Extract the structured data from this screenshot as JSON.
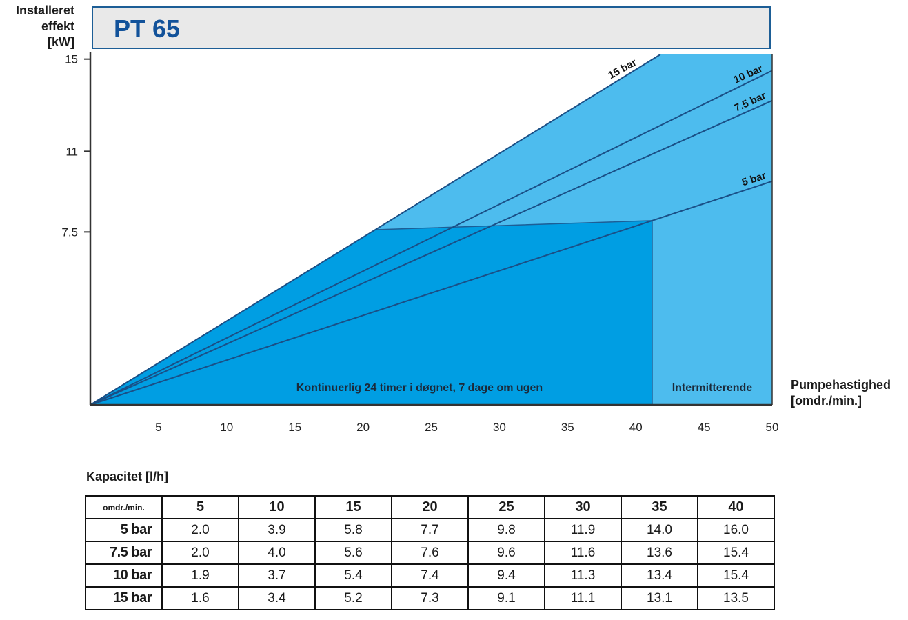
{
  "title": "PT 65",
  "colors": {
    "continuous": "#009ee3",
    "intermittent": "#4dbcee",
    "border": "#1d5e96",
    "title": "#12529a"
  },
  "chart_data": {
    "type": "line",
    "ylabel_lines": [
      "Installeret",
      "effekt",
      "[kW]"
    ],
    "xlabel_lines": [
      "Pumpehastighed",
      "[omdr./min.]"
    ],
    "x_ticks": [
      "5",
      "10",
      "15",
      "20",
      "25",
      "30",
      "35",
      "40",
      "45",
      "50"
    ],
    "y_ticks": [
      "15",
      "11",
      "7.5"
    ],
    "xlim": [
      0,
      50
    ],
    "ylim": [
      0,
      15.2
    ],
    "series": [
      {
        "name": "15 bar",
        "x": [
          0,
          41.8
        ],
        "y": [
          0,
          15.2
        ]
      },
      {
        "name": "10 bar",
        "x": [
          0,
          50
        ],
        "y": [
          0,
          14.5
        ]
      },
      {
        "name": "7.5 bar",
        "x": [
          0,
          50
        ],
        "y": [
          0,
          13.2
        ]
      },
      {
        "name": "5 bar",
        "x": [
          0,
          50
        ],
        "y": [
          0,
          9.7
        ]
      }
    ],
    "regions": [
      {
        "label": "Kontinuerlig 24 timer i døgnet, 7 dage om ugen",
        "x_max": 41.2,
        "y_max": 7.6
      },
      {
        "label": "Intermitterende",
        "x_max": 50,
        "y_max": 15.2
      }
    ]
  },
  "table": {
    "title": "Kapacitet [l/h]",
    "corner": "omdr./min.",
    "columns": [
      "5",
      "10",
      "15",
      "20",
      "25",
      "30",
      "35",
      "40"
    ],
    "rows": [
      {
        "label": "5 bar",
        "values": [
          "2.0",
          "3.9",
          "5.8",
          "7.7",
          "9.8",
          "11.9",
          "14.0",
          "16.0"
        ]
      },
      {
        "label": "7.5 bar",
        "values": [
          "2.0",
          "4.0",
          "5.6",
          "7.6",
          "9.6",
          "11.6",
          "13.6",
          "15.4"
        ]
      },
      {
        "label": "10 bar",
        "values": [
          "1.9",
          "3.7",
          "5.4",
          "7.4",
          "9.4",
          "11.3",
          "13.4",
          "15.4"
        ]
      },
      {
        "label": "15 bar",
        "values": [
          "1.6",
          "3.4",
          "5.2",
          "7.3",
          "9.1",
          "11.1",
          "13.1",
          "13.5"
        ]
      }
    ]
  }
}
